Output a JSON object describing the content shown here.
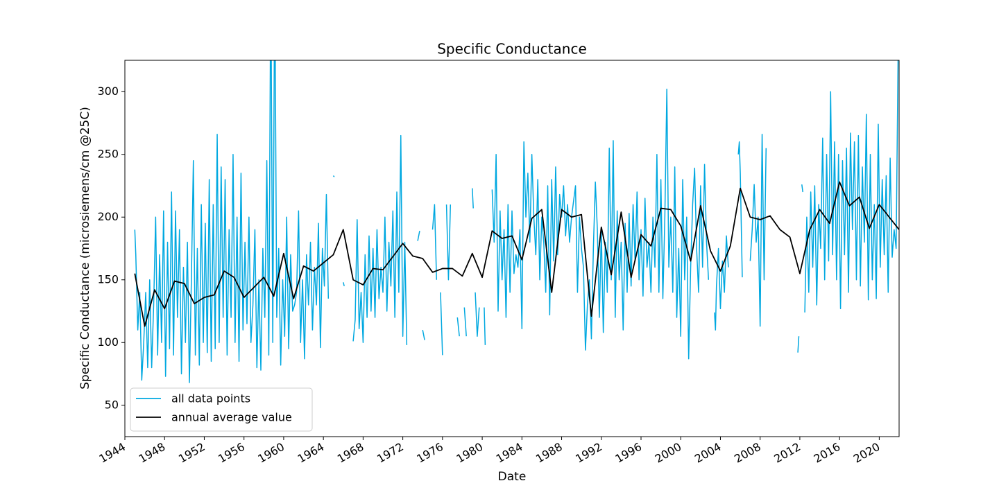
{
  "chart_data": {
    "type": "line",
    "title": "Specific Conductance",
    "x_label": "Date",
    "y_label": "Specific Conductance (microsiemens/cm @25C)",
    "xlim": [
      1944,
      2022
    ],
    "xticks": [
      1944,
      1948,
      1952,
      1956,
      1960,
      1964,
      1968,
      1972,
      1976,
      1980,
      1984,
      1988,
      1992,
      1996,
      2000,
      2004,
      2008,
      2012,
      2016,
      2020
    ],
    "ylim": [
      25,
      325
    ],
    "yticks": [
      50,
      100,
      150,
      200,
      250,
      300
    ],
    "legend": "lower left",
    "series": [
      {
        "name": "all data points",
        "color": "#00a8e0",
        "x": [
          1945.0,
          1945.1,
          1945.3,
          1945.5,
          1945.7,
          1945.9,
          1946.1,
          1946.3,
          1946.5,
          1946.7,
          1946.9,
          1947.1,
          1947.3,
          1947.5,
          1947.7,
          1947.9,
          1948.1,
          1948.3,
          1948.5,
          1948.7,
          1948.9,
          1949.1,
          1949.3,
          1949.5,
          1949.7,
          1949.9,
          1950.1,
          1950.3,
          1950.5,
          1950.7,
          1950.9,
          1951.1,
          1951.3,
          1951.5,
          1951.7,
          1951.9,
          1952.1,
          1952.3,
          1952.5,
          1952.7,
          1952.9,
          1953.1,
          1953.3,
          1953.5,
          1953.7,
          1953.9,
          1954.1,
          1954.3,
          1954.5,
          1954.7,
          1954.9,
          1955.1,
          1955.3,
          1955.5,
          1955.7,
          1955.9,
          1956.1,
          1956.3,
          1956.5,
          1956.7,
          1956.9,
          1957.1,
          1957.3,
          1957.5,
          1957.7,
          1957.9,
          1958.1,
          1958.3,
          1958.5,
          1958.7,
          1958.9,
          1959.1,
          1959.3,
          1959.5,
          1959.7,
          1959.9,
          1960.1,
          1960.3,
          1960.5,
          1960.7,
          1960.9,
          1961.1,
          1961.3,
          1961.5,
          1961.7,
          1961.9,
          1962.1,
          1962.3,
          1962.5,
          1962.7,
          1962.9,
          1963.1,
          1963.3,
          1963.5,
          1963.7,
          1963.9,
          1964.1,
          1964.3,
          1964.5,
          1964.8,
          1965.0,
          1965.1,
          1965.5,
          1966.0,
          1966.1,
          1966.5,
          1967.0,
          1967.2,
          1967.4,
          1967.6,
          1967.8,
          1968.0,
          1968.2,
          1968.4,
          1968.6,
          1968.8,
          1969.0,
          1969.2,
          1969.4,
          1969.6,
          1969.8,
          1970.0,
          1970.2,
          1970.4,
          1970.6,
          1970.8,
          1971.0,
          1971.2,
          1971.4,
          1971.6,
          1971.8,
          1972.0,
          1972.2,
          1972.4,
          1973.0,
          1973.5,
          1973.7,
          1973.9,
          1974.0,
          1974.2,
          1974.6,
          1975.0,
          1975.2,
          1975.4,
          1975.6,
          1975.8,
          1976.0,
          1976.2,
          1976.4,
          1976.6,
          1976.8,
          1977.2,
          1977.5,
          1977.7,
          1978.0,
          1978.2,
          1978.4,
          1978.7,
          1979.0,
          1979.1,
          1979.2,
          1979.3,
          1979.5,
          1979.7,
          1980.0,
          1980.2,
          1980.3,
          1980.6,
          1981.0,
          1981.2,
          1981.4,
          1981.6,
          1981.8,
          1982.0,
          1982.2,
          1982.4,
          1982.6,
          1982.8,
          1983.0,
          1983.2,
          1983.4,
          1983.6,
          1983.8,
          1984.0,
          1984.2,
          1984.4,
          1984.6,
          1984.8,
          1985.0,
          1985.2,
          1985.4,
          1985.6,
          1985.8,
          1986.0,
          1986.2,
          1986.4,
          1986.6,
          1986.8,
          1987.0,
          1987.2,
          1987.4,
          1987.6,
          1987.8,
          1988.0,
          1988.2,
          1988.4,
          1988.6,
          1988.8,
          1989.0,
          1989.4,
          1989.6,
          1989.8,
          1990.0,
          1990.2,
          1990.4,
          1990.6,
          1990.8,
          1991.0,
          1991.2,
          1991.4,
          1991.6,
          1991.8,
          1992.0,
          1992.2,
          1992.4,
          1992.6,
          1992.8,
          1993.0,
          1993.2,
          1993.4,
          1993.6,
          1993.8,
          1994.0,
          1994.2,
          1994.4,
          1994.6,
          1994.8,
          1995.0,
          1995.2,
          1995.4,
          1995.6,
          1995.8,
          1996.0,
          1996.2,
          1996.4,
          1996.6,
          1996.8,
          1997.0,
          1997.2,
          1997.4,
          1997.6,
          1997.8,
          1998.0,
          1998.2,
          1998.4,
          1998.6,
          1998.8,
          1999.0,
          1999.2,
          1999.4,
          1999.6,
          1999.8,
          2000.0,
          2000.2,
          2000.4,
          2000.6,
          2000.8,
          2001.0,
          2001.2,
          2001.4,
          2001.6,
          2001.8,
          2002.0,
          2002.2,
          2002.4,
          2002.6,
          2002.8,
          2003.1,
          2003.4,
          2003.5,
          2003.6,
          2003.8,
          2004.0,
          2004.2,
          2004.4,
          2004.6,
          2004.8,
          2005.3,
          2005.8,
          2005.9,
          2006.0,
          2006.2,
          2006.6,
          2007.0,
          2007.2,
          2007.4,
          2007.6,
          2007.8,
          2008.0,
          2008.2,
          2008.4,
          2008.6,
          2010.0,
          2011.8,
          2011.9,
          2012.0,
          2012.2,
          2012.3,
          2012.4,
          2012.5,
          2012.7,
          2012.9,
          2013.1,
          2013.3,
          2013.5,
          2013.7,
          2013.9,
          2014.1,
          2014.3,
          2014.5,
          2014.7,
          2014.9,
          2015.1,
          2015.3,
          2015.5,
          2015.7,
          2015.9,
          2016.1,
          2016.3,
          2016.5,
          2016.7,
          2016.9,
          2017.1,
          2017.3,
          2017.5,
          2017.7,
          2017.9,
          2018.1,
          2018.3,
          2018.5,
          2018.7,
          2018.9,
          2019.1,
          2019.3,
          2019.5,
          2019.7,
          2019.9,
          2020.1,
          2020.3,
          2020.5,
          2020.7,
          2020.9,
          2021.1,
          2021.3,
          2021.5,
          2021.7,
          2021.9
        ],
        "values": [
          190,
          170,
          110,
          140,
          70,
          100,
          140,
          80,
          150,
          80,
          130,
          200,
          90,
          170,
          100,
          205,
          73,
          180,
          95,
          220,
          90,
          205,
          120,
          190,
          75,
          160,
          100,
          180,
          68,
          150,
          245,
          90,
          175,
          82,
          210,
          100,
          195,
          92,
          230,
          85,
          210,
          95,
          266,
          100,
          240,
          120,
          230,
          90,
          190,
          120,
          250,
          100,
          200,
          85,
          235,
          110,
          180,
          115,
          200,
          100,
          130,
          190,
          80,
          150,
          78,
          175,
          120,
          245,
          90,
          400,
          100,
          400,
          120,
          175,
          82,
          150,
          105,
          200,
          95,
          170,
          125,
          130,
          140,
          205,
          100,
          150,
          87,
          170,
          130,
          180,
          110,
          160,
          130,
          195,
          96,
          175,
          145,
          218,
          135,
          null,
          233,
          232,
          null,
          148,
          145,
          null,
          101,
          118,
          198,
          111,
          140,
          100,
          170,
          120,
          185,
          125,
          175,
          120,
          190,
          135,
          160,
          140,
          200,
          125,
          180,
          145,
          205,
          120,
          220,
          140,
          265,
          105,
          180,
          98,
          null,
          181,
          189,
          null,
          110,
          102,
          null,
          190,
          210,
          150,
          null,
          140,
          90,
          null,
          210,
          150,
          210,
          null,
          120,
          105,
          null,
          128,
          105,
          null,
          223,
          207,
          null,
          140,
          105,
          128,
          null,
          128,
          98,
          null,
          222,
          180,
          250,
          125,
          205,
          150,
          190,
          120,
          210,
          140,
          205,
          155,
          170,
          160,
          190,
          111,
          260,
          200,
          235,
          180,
          250,
          200,
          170,
          230,
          150,
          200,
          180,
          140,
          225,
          122,
          230,
          165,
          240,
          170,
          218,
          200,
          225,
          185,
          210,
          180,
          200,
          225,
          140,
          200,
          175,
          160,
          94,
          130,
          150,
          103,
          175,
          228,
          190,
          120,
          190,
          108,
          180,
          140,
          255,
          150,
          261,
          120,
          205,
          150,
          180,
          110,
          195,
          140,
          203,
          145,
          210,
          165,
          220,
          150,
          190,
          137,
          215,
          160,
          180,
          140,
          200,
          160,
          250,
          140,
          230,
          135,
          200,
          302,
          160,
          200,
          140,
          240,
          120,
          175,
          105,
          230,
          150,
          200,
          87,
          160,
          210,
          239,
          175,
          140,
          225,
          160,
          242,
          180,
          150,
          null,
          124,
          110,
          145,
          175,
          127,
          165,
          140,
          185,
          160,
          null,
          250,
          260,
          235,
          152,
          null,
          165,
          190,
          226,
          180,
          200,
          113,
          266,
          150,
          255,
          null,
          92,
          105,
          null,
          226,
          220,
          null,
          124,
          200,
          140,
          220,
          160,
          225,
          130,
          210,
          175,
          263,
          150,
          250,
          165,
          300,
          170,
          260,
          150,
          250,
          127,
          245,
          170,
          255,
          140,
          267,
          190,
          260,
          150,
          265,
          145,
          240,
          180,
          282,
          134,
          250,
          150,
          210,
          135,
          274,
          160,
          230,
          170,
          233,
          140,
          247,
          168,
          190,
          175,
          330
        ]
      },
      {
        "name": "annual average value",
        "color": "#000000",
        "x": [
          1945,
          1946,
          1947,
          1948,
          1949,
          1950,
          1951,
          1952,
          1953,
          1954,
          1955,
          1956,
          1958,
          1959,
          1960,
          1961,
          1962,
          1963,
          1965,
          1966,
          1967,
          1968,
          1969,
          1970,
          1972,
          1973,
          1974,
          1975,
          1976,
          1977,
          1978,
          1979,
          1980,
          1981,
          1982,
          1983,
          1984,
          1985,
          1986,
          1987,
          1988,
          1989,
          1990,
          1991,
          1992,
          1993,
          1994,
          1995,
          1996,
          1997,
          1998,
          1999,
          2000,
          2001,
          2002,
          2003,
          2004,
          2005,
          2006,
          2007,
          2008,
          2009,
          2010,
          2011,
          2012,
          2013,
          2014,
          2015,
          2016,
          2017,
          2018,
          2019,
          2020,
          2022
        ],
        "values": [
          155,
          113,
          142,
          127,
          149,
          147,
          131,
          136,
          138,
          157,
          152,
          136,
          152,
          137,
          171,
          135,
          161,
          157,
          170,
          190,
          150,
          146,
          159,
          158,
          179,
          169,
          167,
          156,
          159,
          159,
          153,
          171,
          152,
          189,
          183,
          185,
          166,
          199,
          206,
          140,
          206,
          200,
          202,
          121,
          192,
          154,
          204,
          152,
          186,
          177,
          207,
          206,
          193,
          165,
          209,
          173,
          157,
          177,
          223,
          200,
          198,
          201,
          190,
          184,
          155,
          190,
          206,
          195,
          228,
          209,
          216,
          191,
          210,
          190
        ]
      }
    ]
  }
}
